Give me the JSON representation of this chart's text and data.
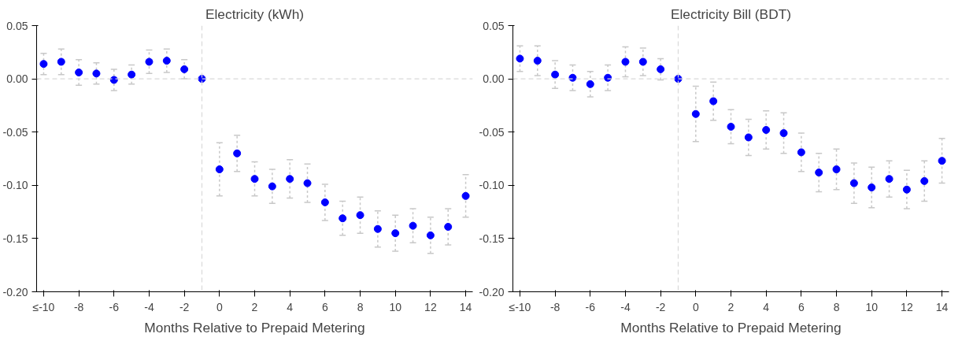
{
  "chart_data": [
    {
      "type": "scatter",
      "title": "Electricity (kWh)",
      "xlabel": "Months Relative to Prepaid Metering",
      "x": [
        -10,
        -9,
        -8,
        -7,
        -6,
        -5,
        -4,
        -3,
        -2,
        -1,
        0,
        1,
        2,
        3,
        4,
        5,
        6,
        7,
        8,
        9,
        10,
        11,
        12,
        13,
        14
      ],
      "series": [
        {
          "color": "#0000ff",
          "values": [
            0.014,
            0.016,
            0.006,
            0.005,
            -0.001,
            0.004,
            0.016,
            0.017,
            0.009,
            0,
            -0.085,
            -0.07,
            -0.094,
            -0.101,
            -0.094,
            -0.098,
            -0.116,
            -0.131,
            -0.128,
            -0.141,
            -0.145,
            -0.138,
            -0.147,
            -0.139,
            -0.11
          ],
          "errors": [
            0.01,
            0.012,
            0.012,
            0.01,
            0.01,
            0.009,
            0.011,
            0.011,
            0.009,
            null,
            0.025,
            0.017,
            0.016,
            0.016,
            0.018,
            0.018,
            0.017,
            0.016,
            0.017,
            0.017,
            0.017,
            0.016,
            0.017,
            0.017,
            0.02
          ]
        }
      ],
      "xlim": [
        -10.4,
        14.4
      ],
      "xticks": [
        {
          "value": -10,
          "label": "≤-10"
        },
        -8,
        -6,
        -4,
        -2,
        0,
        2,
        4,
        6,
        8,
        10,
        12,
        14
      ],
      "ylim": [
        -0.2,
        0.05
      ],
      "yticks": [
        {
          "value": -0.2,
          "label": "-0.20"
        },
        {
          "value": -0.15,
          "label": "-0.15"
        },
        {
          "value": -0.1,
          "label": "-0.10"
        },
        {
          "value": -0.05,
          "label": "-0.05"
        },
        {
          "value": 0,
          "label": "0.00"
        },
        {
          "value": 0.05,
          "label": "0.05"
        }
      ],
      "ref_lines": [
        {
          "axis": "y",
          "value": 0,
          "color": "#d9d9d9",
          "line_style": "dashed"
        },
        {
          "axis": "x",
          "value": -1,
          "color": "#d9d9d9",
          "line_style": "dashed"
        }
      ],
      "marker": "circle",
      "grid": false
    },
    {
      "type": "scatter",
      "title": "Electricity Bill (BDT)",
      "xlabel": "Months Relative to Prepaid Metering",
      "x": [
        -10,
        -9,
        -8,
        -7,
        -6,
        -5,
        -4,
        -3,
        -2,
        -1,
        0,
        1,
        2,
        3,
        4,
        5,
        6,
        7,
        8,
        9,
        10,
        11,
        12,
        13,
        14
      ],
      "series": [
        {
          "color": "#0000ff",
          "values": [
            0.019,
            0.017,
            0.004,
            0.001,
            -0.005,
            0.001,
            0.016,
            0.016,
            0.009,
            0,
            -0.033,
            -0.021,
            -0.045,
            -0.055,
            -0.048,
            -0.051,
            -0.069,
            -0.088,
            -0.085,
            -0.098,
            -0.102,
            -0.094,
            -0.104,
            -0.096,
            -0.077
          ],
          "errors": [
            0.012,
            0.014,
            0.013,
            0.012,
            0.012,
            0.012,
            0.014,
            0.013,
            0.01,
            null,
            0.026,
            0.018,
            0.016,
            0.017,
            0.018,
            0.019,
            0.018,
            0.018,
            0.019,
            0.019,
            0.019,
            0.017,
            0.018,
            0.019,
            0.021
          ]
        }
      ],
      "xlim": [
        -10.4,
        14.4
      ],
      "xticks": [
        {
          "value": -10,
          "label": "≤-10"
        },
        -8,
        -6,
        -4,
        -2,
        0,
        2,
        4,
        6,
        8,
        10,
        12,
        14
      ],
      "ylim": [
        -0.2,
        0.05
      ],
      "yticks": [
        {
          "value": -0.2,
          "label": "-0.20"
        },
        {
          "value": -0.15,
          "label": "-0.15"
        },
        {
          "value": -0.1,
          "label": "-0.10"
        },
        {
          "value": -0.05,
          "label": "-0.05"
        },
        {
          "value": 0,
          "label": "0.00"
        },
        {
          "value": 0.05,
          "label": "0.05"
        }
      ],
      "ref_lines": [
        {
          "axis": "y",
          "value": 0,
          "color": "#d9d9d9",
          "line_style": "dashed"
        },
        {
          "axis": "x",
          "value": -1,
          "color": "#d9d9d9",
          "line_style": "dashed"
        }
      ],
      "marker": "circle",
      "grid": false
    }
  ]
}
